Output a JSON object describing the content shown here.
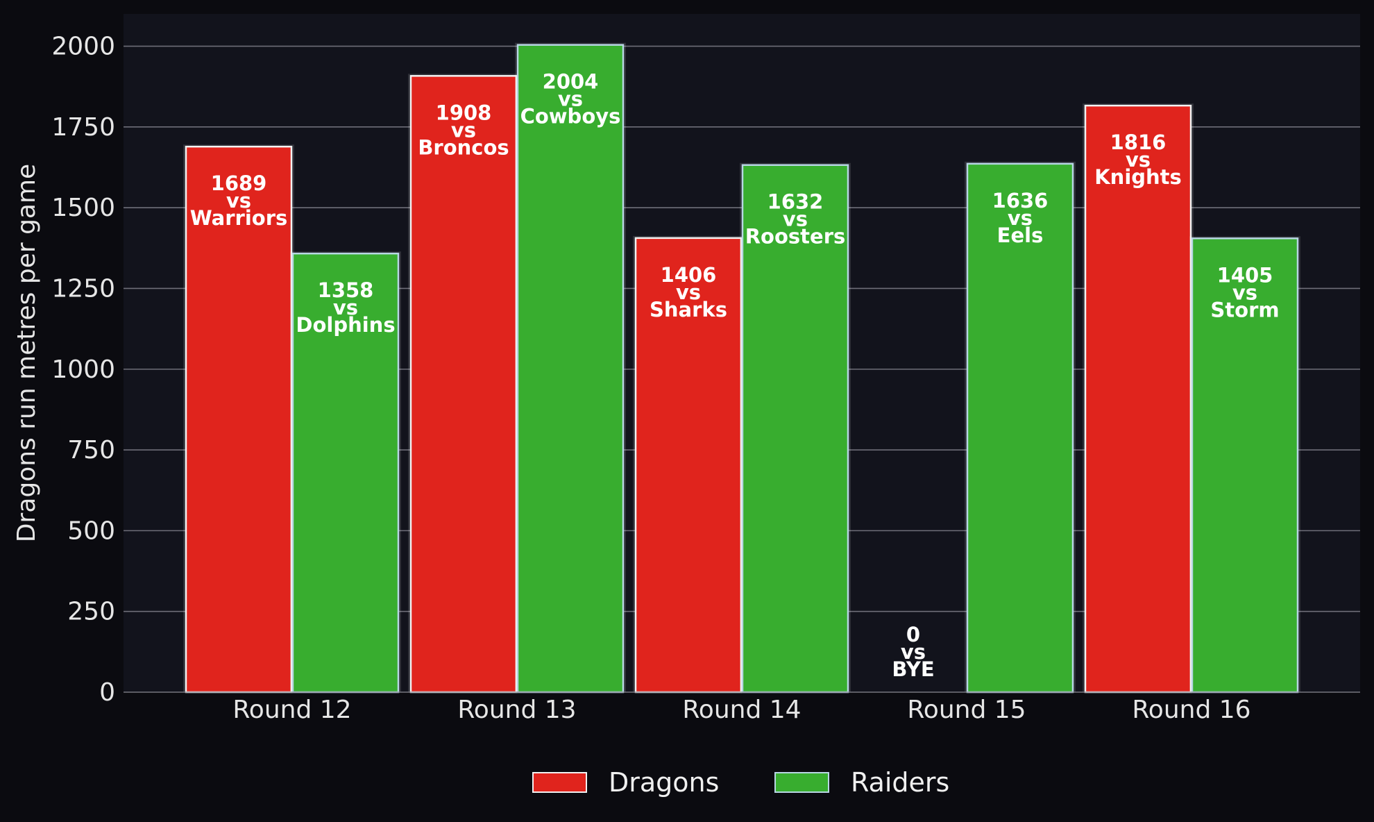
{
  "chart_data": {
    "type": "bar",
    "ylabel": "Dragons run metres per game",
    "xlabel": "",
    "categories": [
      "Round 12",
      "Round 13",
      "Round 14",
      "Round 15",
      "Round 16"
    ],
    "ylim": [
      0,
      2100
    ],
    "yticks": [
      0,
      250,
      500,
      750,
      1000,
      1250,
      1500,
      1750,
      2000
    ],
    "grid": true,
    "legend_position": "bottom-center",
    "series": [
      {
        "name": "Dragons",
        "color": "#e0241d",
        "values": [
          1689,
          1908,
          1406,
          0,
          1816
        ],
        "opponents": [
          "Warriors",
          "Broncos",
          "Sharks",
          "BYE",
          "Knights"
        ]
      },
      {
        "name": "Raiders",
        "color": "#38ad2f",
        "values": [
          1358,
          2004,
          1632,
          1636,
          1405
        ],
        "opponents": [
          "Dolphins",
          "Cowboys",
          "Roosters",
          "Eels",
          "Storm"
        ]
      }
    ],
    "label_connector": "vs",
    "background": "#12131c",
    "page_background": "#0b0b10"
  }
}
